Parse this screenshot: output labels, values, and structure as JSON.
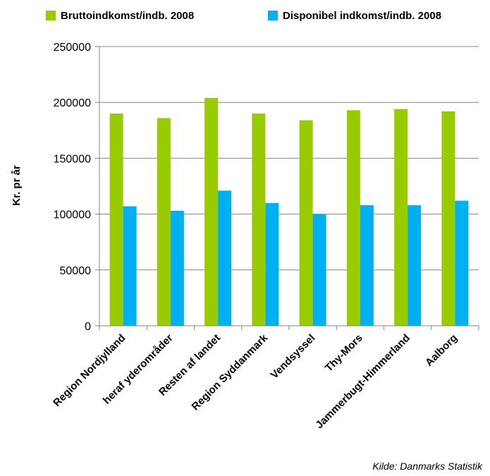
{
  "colors": {
    "bruttoindkomst": "#99cc00",
    "disponibel": "#00b0f0",
    "axis": "#868686",
    "grid": "#868686"
  },
  "source_note": "Kilde: Danmarks Statistik",
  "chart_data": {
    "type": "bar",
    "title": "",
    "xlabel": "",
    "ylabel": "Kr. pr år",
    "ylim": [
      0,
      250000
    ],
    "yticks": [
      0,
      50000,
      100000,
      150000,
      200000,
      250000
    ],
    "ytick_labels": [
      "0",
      "50000",
      "100000",
      "150000",
      "200000",
      "250000"
    ],
    "grid": true,
    "legend_position": "top",
    "categories": [
      "Region Nordjylland",
      "heraf yderområder",
      "Resten af landet",
      "Region Syddanmark",
      "Vendsyssel",
      "Thy-Mors",
      "Jammerbugt-Himmerland",
      "Aalborg"
    ],
    "series": [
      {
        "name": "Bruttoindkomst/indb. 2008",
        "color": "#99cc00",
        "values": [
          190000,
          186000,
          204000,
          190000,
          184000,
          193000,
          194000,
          192000
        ]
      },
      {
        "name": "Disponibel indkomst/indb. 2008",
        "color": "#00b0f0",
        "values": [
          107000,
          103000,
          121000,
          110000,
          100000,
          108000,
          108000,
          112000
        ]
      }
    ]
  }
}
